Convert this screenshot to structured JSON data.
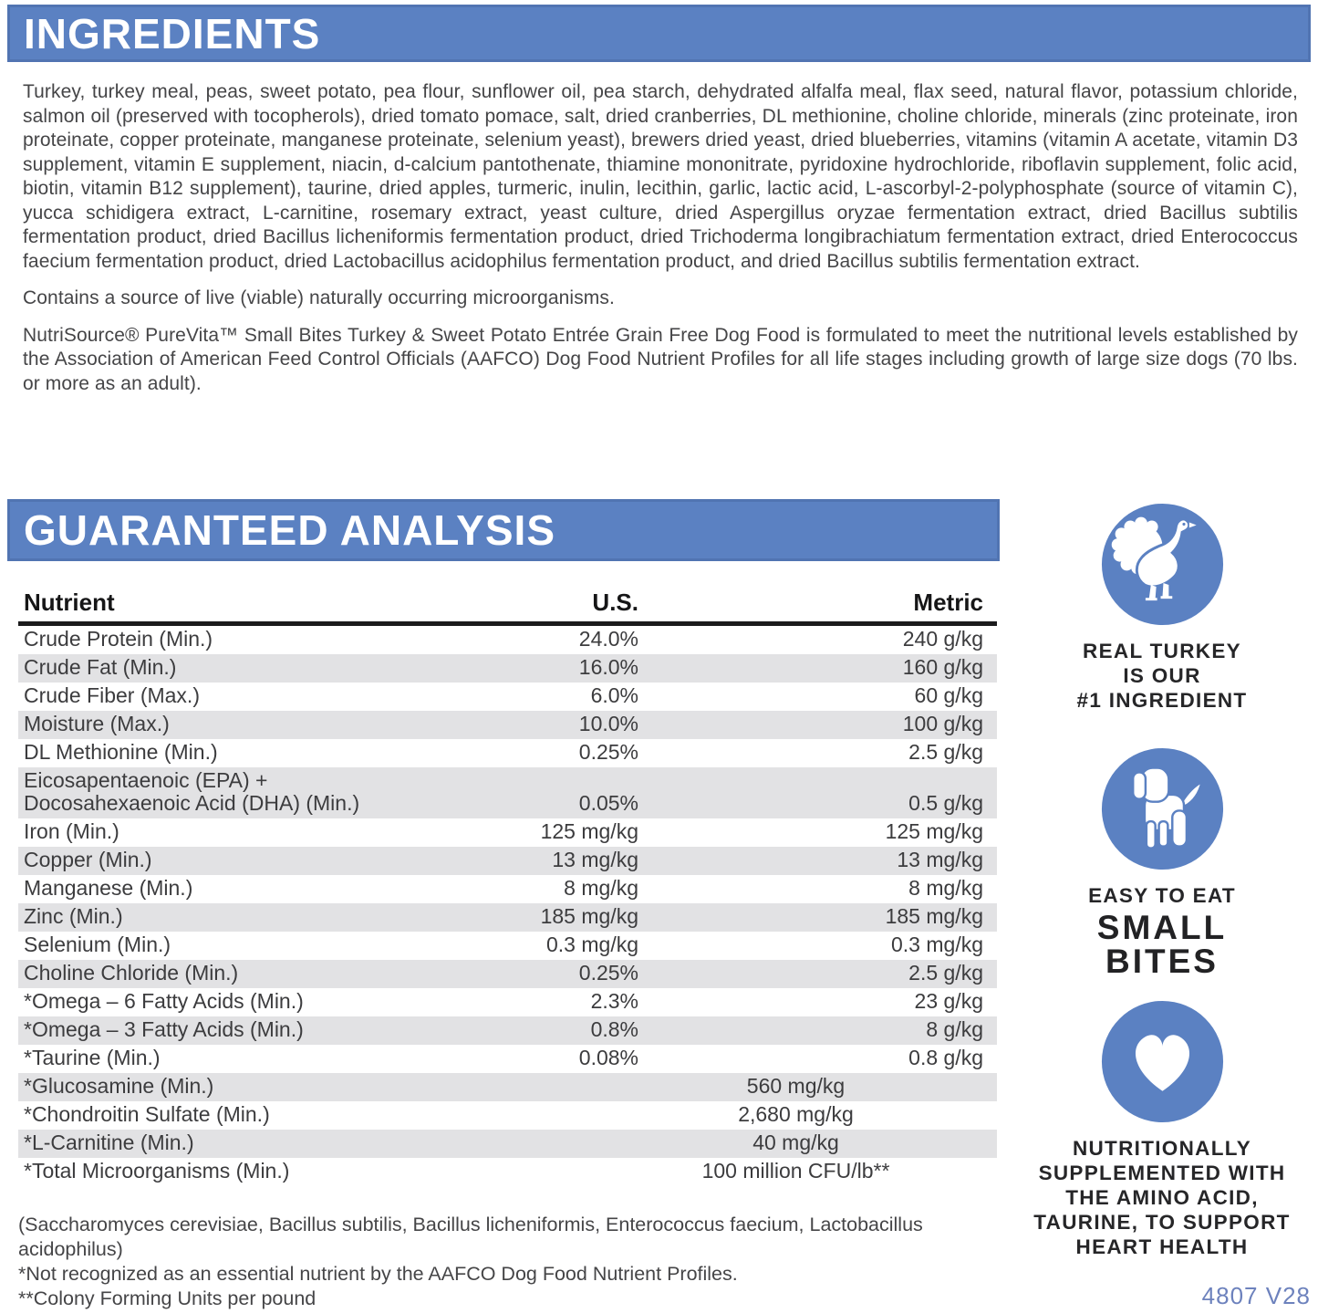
{
  "ingredients": {
    "title": "INGREDIENTS",
    "body": "Turkey, turkey meal, peas, sweet potato, pea flour, sunflower oil, pea starch, dehydrated alfalfa meal, flax seed, natural flavor, potassium chloride, salmon oil (preserved with tocopherols), dried tomato pomace, salt, dried cranberries, DL methionine, choline chloride, minerals (zinc proteinate, iron proteinate, copper proteinate, manganese proteinate, selenium yeast), brewers dried yeast, dried blueberries, vitamins (vitamin A acetate, vitamin D3 supplement, vitamin E supplement, niacin, d-calcium pantothenate, thiamine mononitrate, pyridoxine hydrochloride, riboflavin supplement, folic acid, biotin, vitamin B12 supplement), taurine, dried apples, turmeric, inulin, lecithin, garlic, lactic acid, L-ascorbyl-2-polyphosphate (source of vitamin C), yucca schidigera extract, L-carnitine, rosemary extract, yeast culture, dried Aspergillus oryzae fermentation extract, dried Bacillus subtilis fermentation product, dried Bacillus licheniformis fermentation product, dried Trichoderma longibrachiatum fermentation extract, dried Enterococcus faecium fermentation product, dried Lactobacillus acidophilus fermentation product, and dried Bacillus subtilis fermentation extract.",
    "contains_note": "Contains a source of live (viable) naturally occurring microorganisms.",
    "aafco_statement": "NutriSource® PureVita™ Small Bites Turkey & Sweet Potato Entrée Grain Free Dog Food is formulated to meet the nutritional levels established by the Association of American Feed Control Officials (AAFCO) Dog Food Nutrient Profiles for all life stages including growth of large size dogs (70 lbs. or more as an adult)."
  },
  "guaranteed_analysis": {
    "title": "GUARANTEED ANALYSIS",
    "columns": {
      "nutrient": "Nutrient",
      "us": "U.S.",
      "metric": "Metric"
    },
    "rows": [
      {
        "nutrient": "Crude Protein (Min.)",
        "us": "24.0%",
        "metric": "240 g/kg"
      },
      {
        "nutrient": "Crude Fat (Min.)",
        "us": "16.0%",
        "metric": "160 g/kg"
      },
      {
        "nutrient": "Crude Fiber (Max.)",
        "us": "6.0%",
        "metric": "60 g/kg"
      },
      {
        "nutrient": "Moisture (Max.)",
        "us": "10.0%",
        "metric": "100 g/kg"
      },
      {
        "nutrient": "DL Methionine (Min.)",
        "us": "0.25%",
        "metric": "2.5 g/kg"
      },
      {
        "nutrient_lines": [
          "Eicosapentaenoic (EPA) +",
          "Docosahexaenoic Acid (DHA) (Min.)"
        ],
        "us": "0.05%",
        "metric": "0.5 g/kg"
      },
      {
        "nutrient": "Iron (Min.)",
        "us": "125 mg/kg",
        "metric": "125 mg/kg"
      },
      {
        "nutrient": "Copper (Min.)",
        "us": "13 mg/kg",
        "metric": "13 mg/kg"
      },
      {
        "nutrient": "Manganese (Min.)",
        "us": "8 mg/kg",
        "metric": "8 mg/kg"
      },
      {
        "nutrient": "Zinc (Min.)",
        "us": "185 mg/kg",
        "metric": "185 mg/kg"
      },
      {
        "nutrient": "Selenium (Min.)",
        "us": "0.3 mg/kg",
        "metric": "0.3 mg/kg"
      },
      {
        "nutrient": "Choline Chloride (Min.)",
        "us": "0.25%",
        "metric": "2.5 g/kg"
      },
      {
        "nutrient": "*Omega – 6 Fatty Acids (Min.)",
        "us": "2.3%",
        "metric": "23 g/kg"
      },
      {
        "nutrient": "*Omega – 3 Fatty Acids (Min.)",
        "us": "0.8%",
        "metric": "8 g/kg"
      },
      {
        "nutrient": "*Taurine (Min.)",
        "us": "0.08%",
        "metric": "0.8 g/kg"
      },
      {
        "nutrient": "*Glucosamine (Min.)",
        "combined": "560 mg/kg"
      },
      {
        "nutrient": "*Chondroitin Sulfate (Min.)",
        "combined": "2,680 mg/kg"
      },
      {
        "nutrient": "*L-Carnitine (Min.)",
        "combined": "40 mg/kg"
      },
      {
        "nutrient": "*Total Microorganisms (Min.)",
        "combined": "100 million CFU/lb**"
      }
    ],
    "footnotes": [
      "(Saccharomyces cerevisiae, Bacillus subtilis, Bacillus licheniformis, Enterococcus faecium, Lactobacillus acidophilus)",
      "*Not recognized as an essential nutrient by the AAFCO Dog Food Nutrient Profiles.",
      "**Colony Forming Units per pound"
    ]
  },
  "badges": [
    {
      "icon": "turkey-icon",
      "caption_lines": [
        "REAL TURKEY",
        "IS OUR",
        "#1 INGREDIENT"
      ]
    },
    {
      "icon": "dog-icon",
      "caption_lines": [
        "EASY TO EAT"
      ],
      "caption_big_lines": [
        "SMALL",
        "BITES"
      ]
    },
    {
      "icon": "heart-icon",
      "caption_lines": [
        "NUTRITIONALLY",
        "SUPPLEMENTED WITH",
        "THE AMINO ACID,",
        "TAURINE, TO SUPPORT",
        "HEART HEALTH"
      ]
    }
  ],
  "code": "4807 V28",
  "colors": {
    "accent_blue": "#5b81c2",
    "row_stripe_gray": "#e2e2e4",
    "code_blue": "#6d82bd"
  }
}
